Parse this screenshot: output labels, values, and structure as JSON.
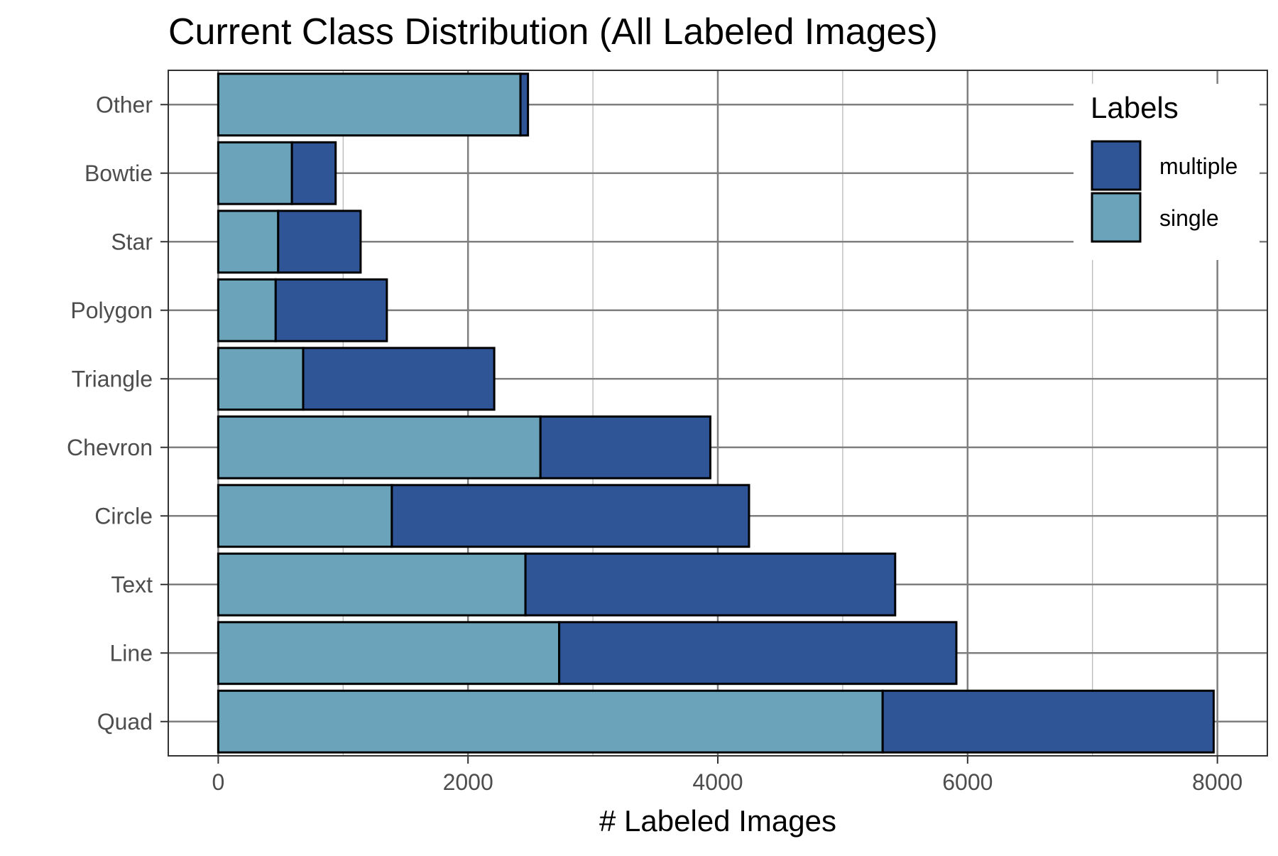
{
  "chart_data": {
    "type": "bar",
    "orientation": "horizontal",
    "stacked": true,
    "title": "Current Class Distribution (All Labeled Images)",
    "xlabel": "# Labeled Images",
    "ylabel": "",
    "xlim": [
      -400,
      8400
    ],
    "xticks": [
      0,
      2000,
      4000,
      6000,
      8000
    ],
    "xtick_labels": [
      "0",
      "2000",
      "4000",
      "6000",
      "8000"
    ],
    "categories": [
      "Other",
      "Bowtie",
      "Star",
      "Polygon",
      "Triangle",
      "Chevron",
      "Circle",
      "Text",
      "Line",
      "Quad"
    ],
    "series": [
      {
        "name": "single",
        "color": "#6ba3ba",
        "values": [
          2420,
          590,
          480,
          460,
          680,
          2580,
          1390,
          2460,
          2730,
          5320
        ]
      },
      {
        "name": "multiple",
        "color": "#2f5597",
        "values": [
          60,
          350,
          660,
          890,
          1530,
          1360,
          2860,
          2960,
          3180,
          2650
        ]
      }
    ],
    "legend": {
      "title": "Labels",
      "position": "top-right",
      "entries": [
        "multiple",
        "single"
      ]
    },
    "grid": true
  }
}
